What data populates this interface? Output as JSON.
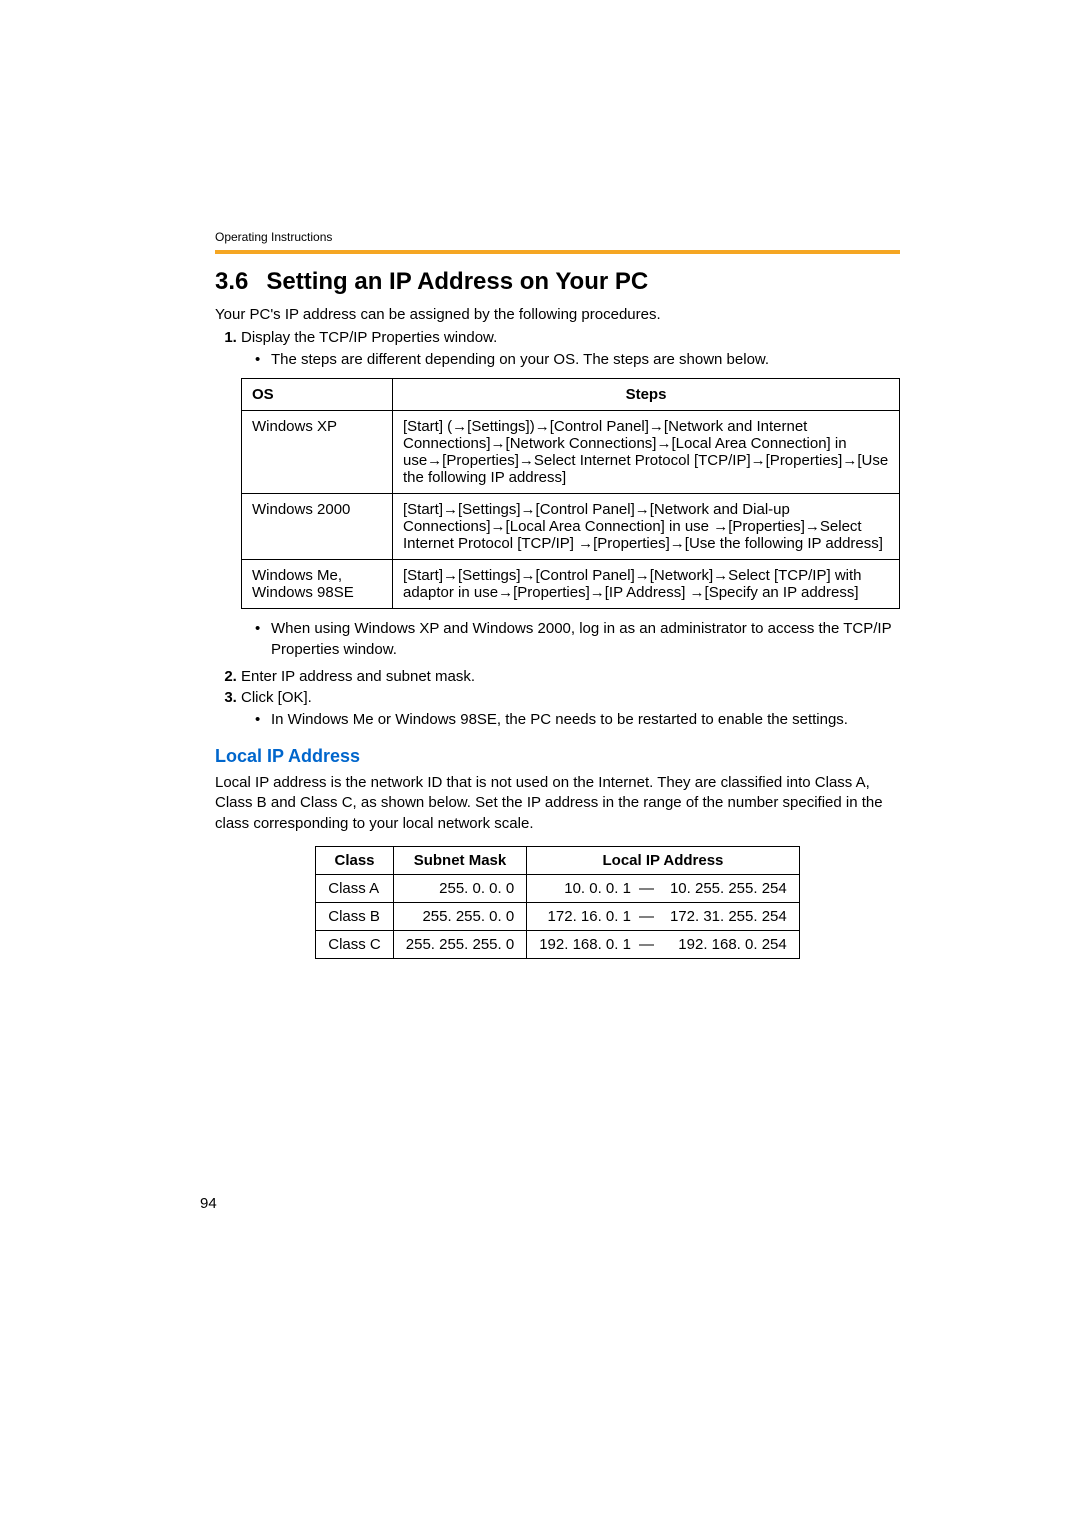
{
  "header": {
    "running": "Operating Instructions"
  },
  "section": {
    "number": "3.6",
    "title": "Setting an IP Address on Your PC",
    "intro": "Your PC's IP address can be assigned by the following procedures."
  },
  "list": {
    "item1": "Display the TCP/IP Properties window.",
    "item1_bullet1": "The steps are different depending on your OS. The steps are shown below.",
    "item1_bullet2": "When using Windows XP and Windows 2000, log in as an administrator to access the TCP/IP Properties window.",
    "item2": "Enter IP address and subnet mask.",
    "item3": "Click [OK].",
    "item3_bullet1": "In Windows Me or Windows 98SE, the PC needs to be restarted to enable the settings."
  },
  "os_table": {
    "headers": {
      "os": "OS",
      "steps": "Steps"
    },
    "rows": [
      {
        "os": "Windows XP",
        "steps": "[Start] (→[Settings])→[Control Panel]→[Network and Internet Connections]→[Network Connections]→[Local Area Connection] in use→[Properties]→Select Internet Protocol [TCP/IP]→[Properties]→[Use the following IP address]"
      },
      {
        "os": "Windows 2000",
        "steps": "[Start]→[Settings]→[Control Panel]→[Network and Dial-up Connections]→[Local Area Connection] in use →[Properties]→Select Internet Protocol [TCP/IP] →[Properties]→[Use the following IP address]"
      },
      {
        "os": "Windows Me, Windows 98SE",
        "steps": "[Start]→[Settings]→[Control Panel]→[Network]→Select [TCP/IP] with adaptor in use→[Properties]→[IP Address] →[Specify an IP address]"
      }
    ]
  },
  "subsection": {
    "title": "Local IP Address",
    "body": "Local IP address is the network ID that is not used on the Internet. They are classified into Class A, Class B and Class C, as shown below. Set the IP address in the range of the number specified in the class corresponding to your local network scale."
  },
  "class_table": {
    "headers": {
      "class": "Class",
      "mask": "Subnet Mask",
      "local": "Local IP Address"
    },
    "rows": [
      {
        "class": "Class A",
        "mask": "255. 0. 0. 0",
        "start": "10. 0. 0. 1",
        "dash": "—",
        "end": "10. 255. 255. 254"
      },
      {
        "class": "Class B",
        "mask": "255. 255. 0. 0",
        "start": "172. 16. 0. 1",
        "dash": "—",
        "end": "172. 31. 255. 254"
      },
      {
        "class": "Class C",
        "mask": "255. 255. 255. 0",
        "start": "192. 168. 0. 1",
        "dash": "—",
        "end": "192. 168. 0. 254"
      }
    ]
  },
  "page_number": "94"
}
